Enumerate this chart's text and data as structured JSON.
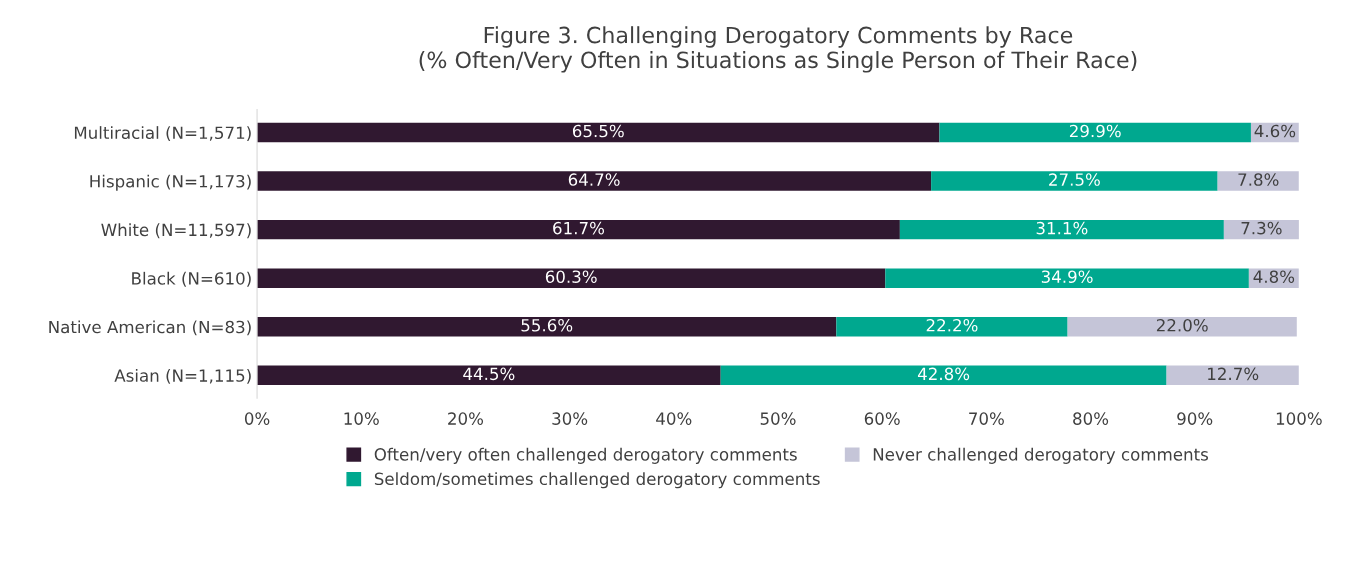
{
  "chart_data": {
    "type": "bar",
    "orientation": "horizontal",
    "stacked": true,
    "title": "Figure 3. Challenging Derogatory Comments by Race\n(% Often/Very Often in Situations as Single Person of Their Race)",
    "categories": [
      "Multiracial (N=1,571)",
      "Hispanic (N=1,173)",
      "White (N=11,597)",
      "Black (N=610)",
      "Native American (N=83)",
      "Asian (N=1,115)"
    ],
    "series": [
      {
        "name": "Often/very often challenged derogatory comments",
        "color": "#301830",
        "values": [
          65.5,
          64.7,
          61.7,
          60.3,
          55.6,
          44.5
        ],
        "value_labels": [
          "65.5%",
          "64.7%",
          "61.7%",
          "60.3%",
          "55.6%",
          "44.5%"
        ]
      },
      {
        "name": "Seldom/sometimes challenged derogatory comments",
        "color": "#00a88f",
        "values": [
          29.9,
          27.5,
          31.1,
          34.9,
          22.2,
          42.8
        ],
        "value_labels": [
          "29.9%",
          "27.5%",
          "31.1%",
          "34.9%",
          "22.2%",
          "42.8%"
        ]
      },
      {
        "name": "Never challenged derogatory comments",
        "color": "#c5c5d8",
        "values": [
          4.6,
          7.8,
          7.3,
          4.8,
          22.0,
          12.7
        ],
        "value_labels": [
          "4.6%",
          "7.8%",
          "7.3%",
          "4.8%",
          "22.0%",
          "12.7%"
        ]
      }
    ],
    "xlim": [
      0,
      100
    ],
    "xticks": [
      {
        "value": 0,
        "label": "0%"
      },
      {
        "value": 10,
        "label": "10%"
      },
      {
        "value": 20,
        "label": "20%"
      },
      {
        "value": 30,
        "label": "30%"
      },
      {
        "value": 40,
        "label": "40%"
      },
      {
        "value": 50,
        "label": "50%"
      },
      {
        "value": 60,
        "label": "60%"
      },
      {
        "value": 70,
        "label": "70%"
      },
      {
        "value": 80,
        "label": "80%"
      },
      {
        "value": 90,
        "label": "90%"
      },
      {
        "value": 100,
        "label": "100%"
      }
    ],
    "grid": false,
    "legend": "bottom"
  }
}
